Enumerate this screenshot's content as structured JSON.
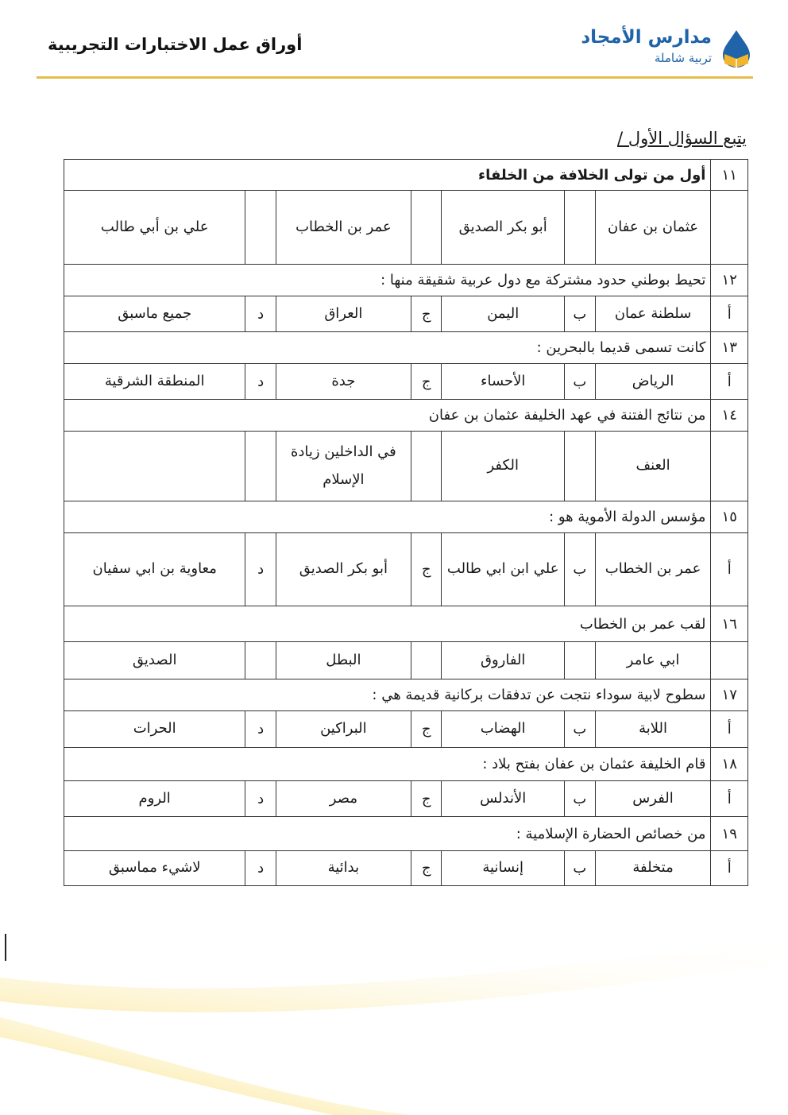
{
  "header": {
    "document_title": "أوراق عمل الاختبارات التجريبية",
    "logo_name": "مدارس الأمجاد",
    "logo_tagline": "تربية شاملة",
    "accent_color": "#e5bd4a",
    "brand_color": "#1f63a8"
  },
  "section_title": "يتبع السؤال الأول /",
  "questions": [
    {
      "num": "١١",
      "text": "أول من تولى الخلافة من الخلفاء",
      "bold": true,
      "letters": [
        "",
        "",
        "",
        ""
      ],
      "options": [
        "عثمان بن عفان",
        "أبو بكر الصديق",
        "عمر بن الخطاب",
        "علي بن أبي طالب"
      ]
    },
    {
      "num": "١٢",
      "text": "تحيط بوطني حدود مشتركة مع دول عربية شقيقة منها :",
      "letters": [
        "أ",
        "ب",
        "ج",
        "د"
      ],
      "options": [
        "سلطنة عمان",
        "اليمن",
        "العراق",
        "جميع ماسبق"
      ]
    },
    {
      "num": "١٣",
      "text": "كانت تسمى قديما بالبحرين :",
      "letters": [
        "أ",
        "ب",
        "ج",
        "د"
      ],
      "options": [
        "الرياض",
        "الأحساء",
        "جدة",
        "المنطقة الشرقية"
      ]
    },
    {
      "num": "١٤",
      "text": "من نتائج الفتنة في عهد الخليفة عثمان بن عفان",
      "letters": [
        "",
        "",
        "",
        ""
      ],
      "options": [
        "العنف",
        "الكفر",
        "في الداخلين زيادة الإسلام",
        ""
      ]
    },
    {
      "num": "١٥",
      "text": "مؤسس الدولة الأموية هو :",
      "letters": [
        "أ",
        "ب",
        "ج",
        "د"
      ],
      "options": [
        "عمر بن الخطاب",
        "علي ابن ابي طالب",
        "أبو بكر الصديق",
        "معاوية بن ابي سفيان"
      ]
    },
    {
      "num": "١٦",
      "text": "لقب عمر بن الخطاب",
      "letters": [
        "",
        "",
        "",
        ""
      ],
      "options": [
        "ابي عامر",
        "الفاروق",
        "البطل",
        "الصديق"
      ]
    },
    {
      "num": "١٧",
      "text": "سطوح لابية سوداء نتجت عن تدفقات بركانية قديمة هي :",
      "letters": [
        "أ",
        "ب",
        "ج",
        "د"
      ],
      "options": [
        "اللابة",
        "الهضاب",
        "البراكين",
        "الحرات"
      ]
    },
    {
      "num": "١٨",
      "text": "قام الخليفة عثمان بن عفان بفتح بلاد :",
      "letters": [
        "أ",
        "ب",
        "ج",
        "د"
      ],
      "options": [
        "الفرس",
        "الأندلس",
        "مصر",
        "الروم"
      ]
    },
    {
      "num": "١٩",
      "text": "من خصائص الحضارة الإسلامية :",
      "letters": [
        "أ",
        "ب",
        "ج",
        "د"
      ],
      "options": [
        "متخلفة",
        "إنسانية",
        "بدائية",
        "لاشيء مماسبق"
      ]
    }
  ]
}
